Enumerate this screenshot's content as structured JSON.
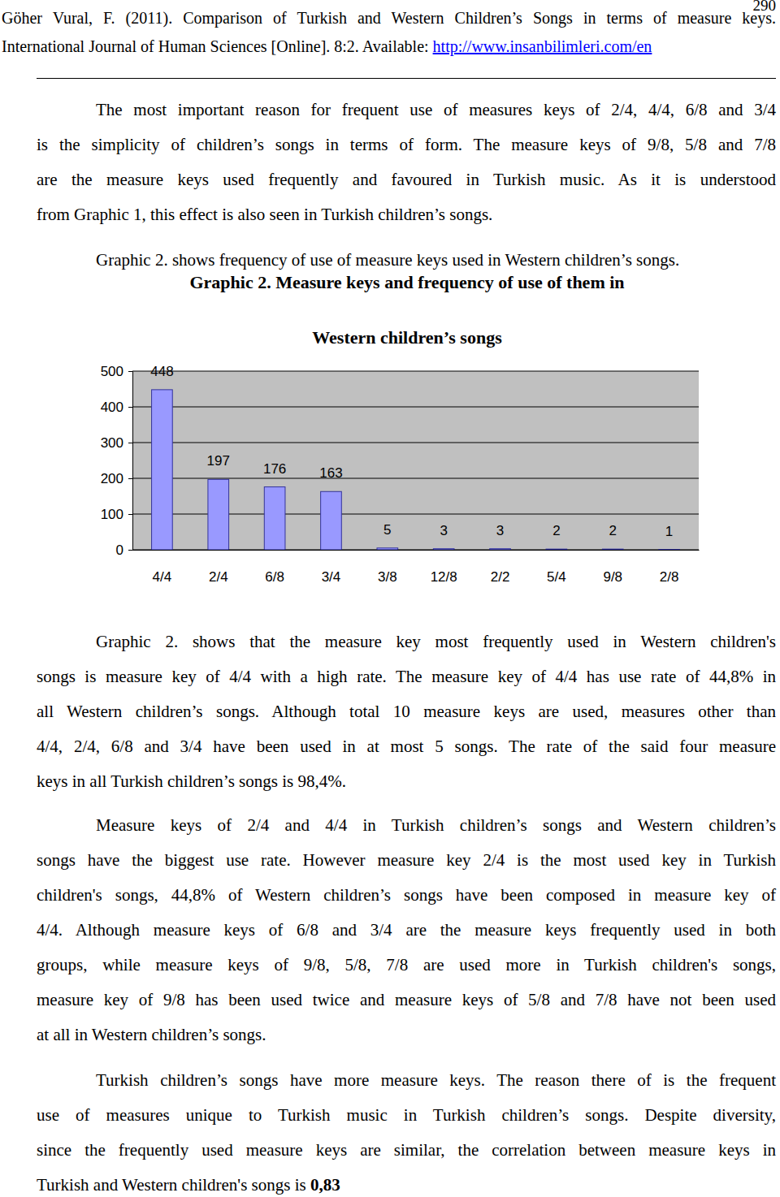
{
  "header": {
    "page_number": "290",
    "citation": "Göher Vural, F. (2011). Comparison of Turkish and Western Children’s Songs in terms of measure keys.",
    "journal": "International Journal of Human Sciences [Online]. 8:2. Available: ",
    "url": "http://www.insanbilimleri.com/en"
  },
  "paragraphs": [
    {
      "lines": [
        "The most important reason for frequent use of measures keys of 2/4, 4/4, 6/8 and 3/4",
        "is the simplicity of children’s songs in terms of form. The measure keys of 9/8, 5/8 and 7/8",
        "are the measure keys used frequently and favoured in Turkish music. As it is understood",
        "from Graphic 1, this effect is also seen in Turkish children’s songs."
      ]
    },
    {
      "lines": [
        "Graphic 2. shows frequency of use of measure keys used in Western children’s songs."
      ]
    },
    {
      "lines": [
        "Graphic 2. shows that the measure key most frequently used in Western children's",
        "songs is measure key of 4/4 with a high rate. The measure key of 4/4 has use rate of 44,8% in",
        "all Western children’s songs. Although total 10 measure keys are used, measures other than",
        "4/4, 2/4, 6/8 and 3/4 have been used in at most 5 songs. The rate of the said four measure",
        "keys in all Turkish children’s songs is 98,4%."
      ]
    },
    {
      "lines": [
        "Measure keys of 2/4 and 4/4 in Turkish children’s songs and Western children’s",
        "songs have the biggest use rate. However measure key 2/4 is the most used key in Turkish",
        "children's songs, 44,8% of Western children’s songs have been composed in measure key of",
        "4/4. Although measure keys of 6/8 and 3/4 are the measure keys frequently used in both",
        "groups, while measure keys of 9/8, 5/8, 7/8 are used more in Turkish children's songs,",
        "measure key of 9/8 has been used twice and measure keys of 5/8 and 7/8 have not been used",
        "at all in Western children’s songs."
      ]
    },
    {
      "lines": [
        "Turkish children’s songs have more measure keys. The reason there of is the frequent",
        "use of measures unique to Turkish music in Turkish children’s songs. Despite diversity,",
        "since the frequently used measure keys are similar, the correlation between measure keys in",
        "Turkish and Western children's songs is "
      ],
      "bold_tail": "0,83"
    }
  ],
  "chart_data": {
    "type": "bar",
    "title": "Graphic 2. Measure keys and frequency of use of them in Western children’s songs",
    "categories": [
      "4/4",
      "2/4",
      "6/8",
      "3/4",
      "3/8",
      "12/8",
      "2/2",
      "5/4",
      "9/8",
      "2/8"
    ],
    "values": [
      448,
      197,
      176,
      163,
      5,
      3,
      3,
      2,
      2,
      1
    ],
    "color": "#9999ff",
    "ylim": [
      0,
      500
    ],
    "yticks": [
      0,
      100,
      200,
      300,
      400,
      500
    ],
    "grid": true,
    "data_labels": true
  }
}
